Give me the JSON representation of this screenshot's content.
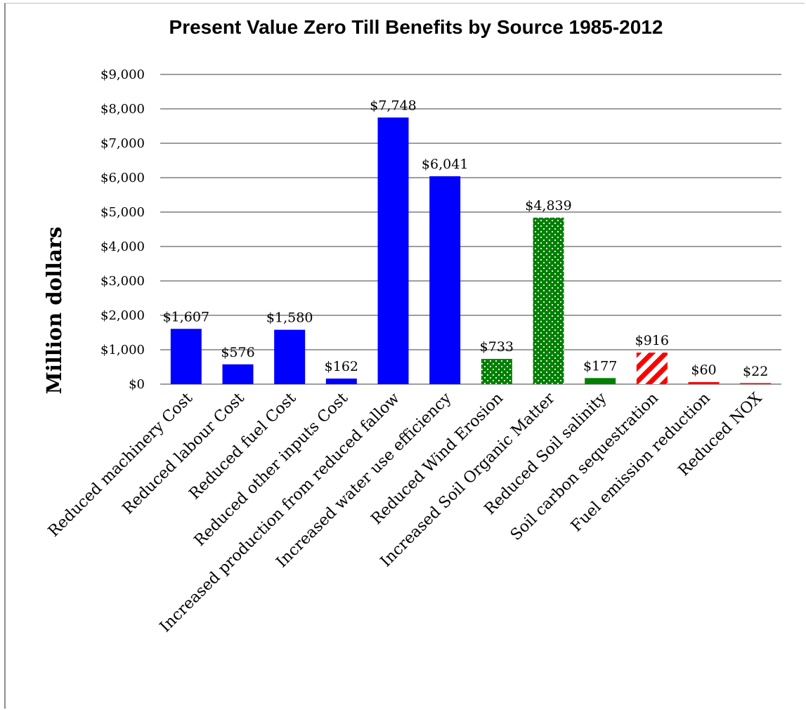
{
  "chart_data": {
    "type": "bar",
    "title": "Present Value Zero Till Benefits by Source 1985-2012",
    "ylabel": "Million dollars",
    "xlabel": "",
    "ylim": [
      0,
      9000
    ],
    "ytick_values": [
      0,
      1000,
      2000,
      3000,
      4000,
      5000,
      6000,
      7000,
      8000,
      9000
    ],
    "ytick_labels": [
      "$0",
      "$1,000",
      "$2,000",
      "$3,000",
      "$4,000",
      "$5,000",
      "$6,000",
      "$7,000",
      "$8,000",
      "$9,000"
    ],
    "grid": true,
    "legend": "none",
    "categories": [
      "Reduced machinery Cost",
      "Reduced labour Cost",
      "Reduced fuel Cost",
      "Reduced other inputs Cost",
      "Increased production from reduced fallow",
      "Increased  water use efficiency",
      "Reduced Wind Erosion",
      "Increased Soil Organic Matter",
      "Reduced Soil salinity",
      "Soil carbon sequestration",
      "Fuel emission reduction",
      "Reduced NOX"
    ],
    "values": [
      1607,
      576,
      1580,
      162,
      7748,
      6041,
      733,
      4839,
      177,
      916,
      60,
      22
    ],
    "value_labels": [
      "$1,607",
      "$576",
      "$1,580",
      "$162",
      "$7,748",
      "$6,041",
      "$733",
      "$4,839",
      "$177",
      "$916",
      "$60",
      "$22"
    ],
    "bar_styles": [
      "blue",
      "blue",
      "blue",
      "blue",
      "blue",
      "blue",
      "green-dotted",
      "green-dotted",
      "green",
      "red-hatched",
      "red",
      "red"
    ],
    "colors": {
      "blue": "#0000ff",
      "green": "#008000",
      "red": "#ff0000"
    }
  }
}
